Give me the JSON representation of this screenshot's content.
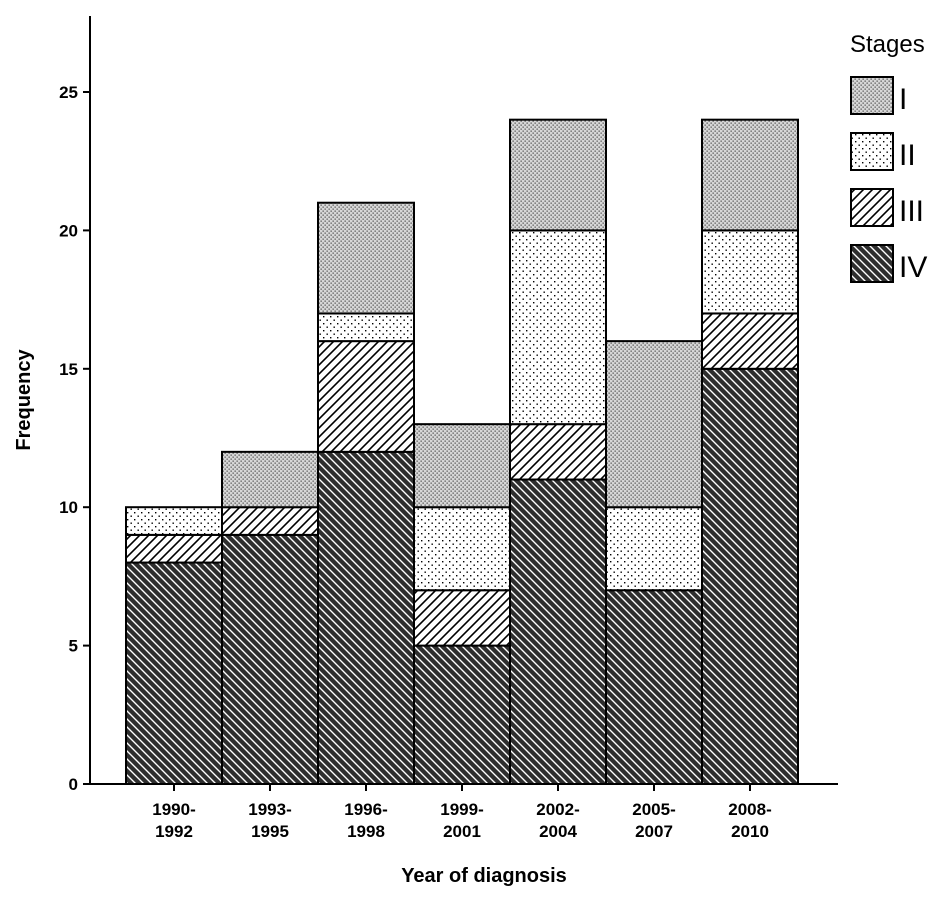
{
  "chart_data": {
    "type": "bar",
    "stacked": true,
    "xlabel": "Year of diagnosis",
    "ylabel": "Frequency",
    "ylim": [
      0,
      27.5
    ],
    "yticks": [
      0,
      5,
      10,
      15,
      20,
      25
    ],
    "grid": false,
    "legend_position": "top-right",
    "legend_title": "Stages",
    "categories": [
      [
        "1990-",
        "1992"
      ],
      [
        "1993-",
        "1995"
      ],
      [
        "1996-",
        "1998"
      ],
      [
        "1999-",
        "2001"
      ],
      [
        "2002-",
        "2004"
      ],
      [
        "2005-",
        "2007"
      ],
      [
        "2008-",
        "2010"
      ]
    ],
    "series": [
      {
        "name": "IV",
        "pattern": "dense-diagonal-hatch",
        "values": [
          8,
          9,
          12,
          5,
          11,
          7,
          15
        ]
      },
      {
        "name": "III",
        "pattern": "diagonal-hatch",
        "values": [
          1,
          1,
          4,
          2,
          2,
          0,
          2
        ]
      },
      {
        "name": "II",
        "pattern": "sparse-dots",
        "values": [
          1,
          0,
          1,
          3,
          7,
          3,
          3
        ]
      },
      {
        "name": "I",
        "pattern": "dense-dots",
        "values": [
          0,
          2,
          4,
          3,
          4,
          6,
          4
        ]
      }
    ],
    "legend_order": [
      "I",
      "II",
      "III",
      "IV"
    ],
    "colors": {
      "stroke": "#000000",
      "background": "#ffffff",
      "dark_fill": "#3a3a3a",
      "dot_fill": "#c8c8c8"
    }
  }
}
